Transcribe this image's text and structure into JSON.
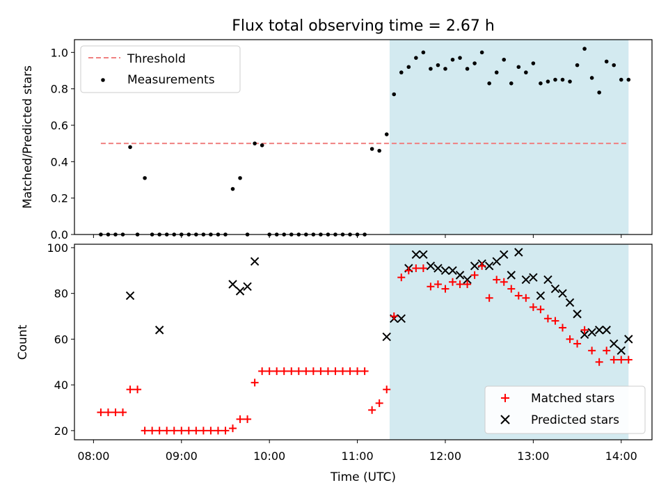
{
  "title": "Flux total observing time = 2.67 h",
  "chart_data": [
    {
      "type": "scatter",
      "panel": "top",
      "ylabel": "Matched/Predicted stars",
      "xlim": [
        "07:47",
        "14:21"
      ],
      "ylim": [
        0,
        1.07
      ],
      "yticks": [
        0.0,
        0.2,
        0.4,
        0.6,
        0.8,
        1.0
      ],
      "yticklabels": [
        "0.0",
        "0.2",
        "0.4",
        "0.6",
        "0.8",
        "1.0"
      ],
      "shaded_region": {
        "start": "11:22",
        "end": "14:05",
        "color": "#d3eaf0"
      },
      "legend": {
        "location": "upper left"
      },
      "threshold": {
        "name": "Threshold",
        "value": 0.5,
        "x_start": "08:05",
        "x_end": "14:05",
        "color": "#f08080",
        "style": "dashed"
      },
      "series": [
        {
          "name": "Measurements",
          "color": "#000000",
          "marker": "dot",
          "x": [
            "08:05",
            "08:10",
            "08:15",
            "08:20",
            "08:25",
            "08:30",
            "08:35",
            "08:40",
            "08:45",
            "08:50",
            "08:55",
            "09:00",
            "09:05",
            "09:10",
            "09:15",
            "09:20",
            "09:25",
            "09:30",
            "09:35",
            "09:40",
            "09:45",
            "09:50",
            "09:55",
            "10:00",
            "10:05",
            "10:10",
            "10:15",
            "10:20",
            "10:25",
            "10:30",
            "10:35",
            "10:40",
            "10:45",
            "10:50",
            "10:55",
            "11:00",
            "11:05",
            "11:10",
            "11:15",
            "11:20",
            "11:25",
            "11:30",
            "11:35",
            "11:40",
            "11:45",
            "11:50",
            "11:55",
            "12:00",
            "12:05",
            "12:10",
            "12:15",
            "12:20",
            "12:25",
            "12:30",
            "12:35",
            "12:40",
            "12:45",
            "12:50",
            "12:55",
            "13:00",
            "13:05",
            "13:10",
            "13:15",
            "13:20",
            "13:25",
            "13:30",
            "13:35",
            "13:40",
            "13:45",
            "13:50",
            "13:55",
            "14:00",
            "14:05"
          ],
          "y": [
            0,
            0,
            0,
            0,
            0.48,
            0,
            0.31,
            0,
            0,
            0,
            0,
            0,
            0,
            0,
            0,
            0,
            0,
            0,
            0.25,
            0.31,
            0,
            0.5,
            0.49,
            0,
            0,
            0,
            0,
            0,
            0,
            0,
            0,
            0,
            0,
            0,
            0,
            0,
            0,
            0.47,
            0.46,
            0.55,
            0.77,
            0.89,
            0.92,
            0.97,
            1.0,
            0.91,
            0.93,
            0.91,
            0.96,
            0.97,
            0.91,
            0.94,
            1.0,
            0.83,
            0.89,
            0.96,
            0.83,
            0.92,
            0.89,
            0.94,
            0.83,
            0.84,
            0.85,
            0.85,
            0.84,
            0.93,
            1.02,
            0.86,
            0.78,
            0.95,
            0.93,
            0.85,
            0.85
          ]
        }
      ]
    },
    {
      "type": "scatter",
      "panel": "bottom",
      "xlabel": "Time (UTC)",
      "ylabel": "Count",
      "xlim": [
        "07:47",
        "14:21"
      ],
      "ylim": [
        16,
        101.5
      ],
      "yticks": [
        20,
        40,
        60,
        80,
        100
      ],
      "xticks": [
        "08:00",
        "09:00",
        "10:00",
        "11:00",
        "12:00",
        "13:00",
        "14:00"
      ],
      "shaded_region": {
        "start": "11:22",
        "end": "14:05",
        "color": "#d3eaf0"
      },
      "legend": {
        "location": "lower right"
      },
      "series": [
        {
          "name": "Matched stars",
          "color": "#ff0000",
          "marker": "plus",
          "x": [
            "08:05",
            "08:10",
            "08:15",
            "08:20",
            "08:25",
            "08:30",
            "08:35",
            "08:40",
            "08:45",
            "08:50",
            "08:55",
            "09:00",
            "09:05",
            "09:10",
            "09:15",
            "09:20",
            "09:25",
            "09:30",
            "09:35",
            "09:40",
            "09:45",
            "09:50",
            "09:55",
            "10:00",
            "10:05",
            "10:10",
            "10:15",
            "10:20",
            "10:25",
            "10:30",
            "10:35",
            "10:40",
            "10:45",
            "10:50",
            "10:55",
            "11:00",
            "11:05",
            "11:10",
            "11:15",
            "11:20",
            "11:25",
            "11:30",
            "11:35",
            "11:40",
            "11:45",
            "11:50",
            "11:55",
            "12:00",
            "12:05",
            "12:10",
            "12:15",
            "12:20",
            "12:25",
            "12:30",
            "12:35",
            "12:40",
            "12:45",
            "12:50",
            "12:55",
            "13:00",
            "13:05",
            "13:10",
            "13:15",
            "13:20",
            "13:25",
            "13:30",
            "13:35",
            "13:40",
            "13:45",
            "13:50",
            "13:55",
            "14:00",
            "14:05"
          ],
          "y": [
            28,
            28,
            28,
            28,
            38,
            38,
            20,
            20,
            20,
            20,
            20,
            20,
            20,
            20,
            20,
            20,
            20,
            20,
            21,
            25,
            25,
            41,
            46,
            46,
            46,
            46,
            46,
            46,
            46,
            46,
            46,
            46,
            46,
            46,
            46,
            46,
            46,
            29,
            32,
            38,
            70,
            87,
            90,
            91,
            91,
            83,
            84,
            82,
            85,
            84,
            84,
            88,
            92,
            78,
            86,
            85,
            82,
            79,
            78,
            74,
            73,
            69,
            68,
            65,
            60,
            58,
            64,
            55,
            50,
            55,
            51,
            51,
            51
          ]
        },
        {
          "name": "Predicted stars",
          "color": "#000000",
          "marker": "cross",
          "x": [
            "08:25",
            "08:45",
            "09:35",
            "09:40",
            "09:45",
            "09:50",
            "11:20",
            "11:25",
            "11:30",
            "11:35",
            "11:40",
            "11:45",
            "11:50",
            "11:55",
            "12:00",
            "12:05",
            "12:10",
            "12:15",
            "12:20",
            "12:25",
            "12:30",
            "12:35",
            "12:40",
            "12:45",
            "12:50",
            "12:55",
            "13:00",
            "13:05",
            "13:10",
            "13:15",
            "13:20",
            "13:25",
            "13:30",
            "13:35",
            "13:40",
            "13:45",
            "13:50",
            "13:55",
            "14:00",
            "14:05"
          ],
          "y": [
            79,
            64,
            84,
            81,
            83,
            94,
            61,
            69,
            69,
            91,
            97,
            97,
            92,
            91,
            90,
            90,
            88,
            86,
            92,
            93,
            92,
            94,
            97,
            88,
            98,
            86,
            87,
            79,
            86,
            82,
            80,
            76,
            71,
            62,
            63,
            64,
            64,
            58,
            55,
            60
          ]
        }
      ]
    }
  ]
}
